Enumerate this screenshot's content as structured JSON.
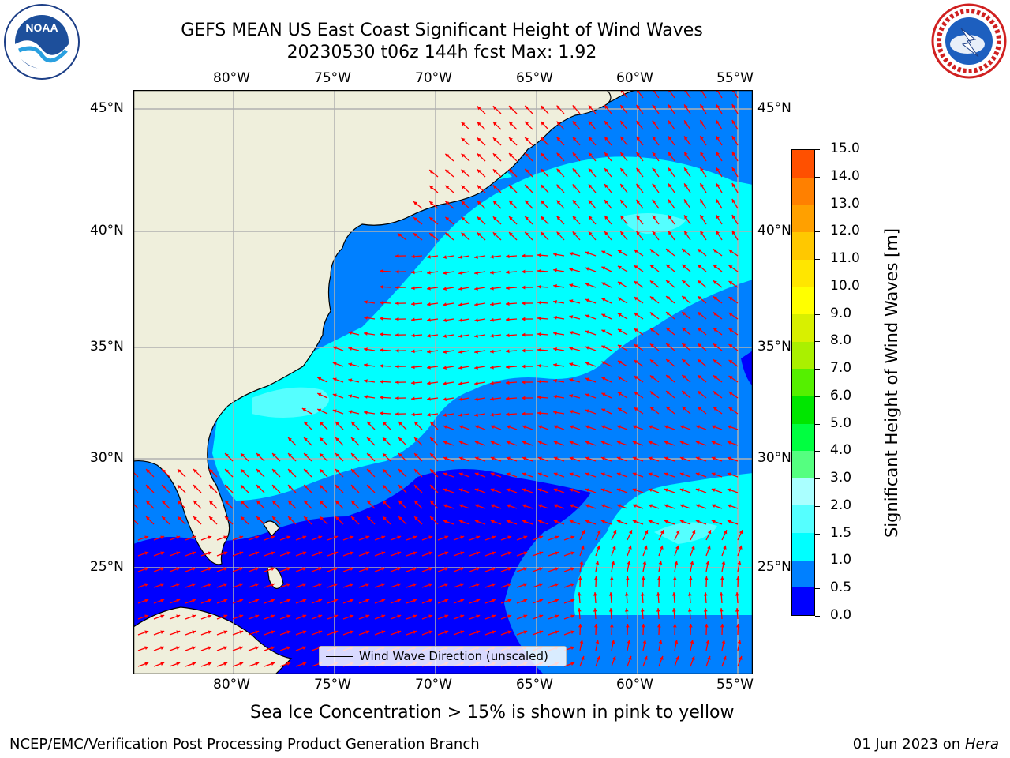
{
  "header": {
    "title_line1": "GEFS MEAN US East Coast Significant Height of Wind Waves",
    "title_line2": "20230530 t06z 144h fcst   Max: 1.92"
  },
  "logos": {
    "left": {
      "name": "NOAA",
      "text": "NOAA",
      "ring_text": "NATIONAL OCEANIC AND ATMOSPHERIC ADMINISTRATION · U.S. DEPARTMENT OF COMMERCE"
    },
    "right": {
      "name": "National Weather Service",
      "ring_text": "NATIONAL WEATHER SERVICE"
    }
  },
  "map": {
    "lon_ticks": [
      "80°W",
      "75°W",
      "70°W",
      "65°W",
      "60°W",
      "55°W"
    ],
    "lat_ticks": [
      "45°N",
      "40°N",
      "35°N",
      "30°N",
      "25°N"
    ],
    "extent": {
      "lon": [
        -85,
        -54.3
      ],
      "lat": [
        20.5,
        45.8
      ]
    },
    "colors": {
      "land": "#efefdc",
      "grid": "#b0b0b0",
      "arrow": "#ff0000",
      "coast": "#000000"
    }
  },
  "colorbar": {
    "label": "Significant Height of Wind Waves [m]",
    "ticks": [
      "15.0",
      "14.0",
      "13.0",
      "12.0",
      "11.0",
      "10.0",
      "9.0",
      "8.0",
      "7.0",
      "6.0",
      "5.0",
      "4.0",
      "3.0",
      "2.0",
      "1.5",
      "1.0",
      "0.5",
      "0.0"
    ],
    "colors": [
      "#0000ff",
      "#0080ff",
      "#00ffff",
      "#55ffff",
      "#aaffff",
      "#55ff80",
      "#00ff40",
      "#00e600",
      "#55f000",
      "#aaf000",
      "#d8f000",
      "#ffff00",
      "#ffe600",
      "#ffc800",
      "#ffa000",
      "#ff8000",
      "#ff5000",
      "#ff2400",
      "#ff0000"
    ]
  },
  "legend": {
    "label": "Wind Wave Direction (unscaled)"
  },
  "notes": {
    "sea_ice": "Sea Ice Concentration > 15% is shown in pink to yellow",
    "credit": "NCEP/EMC/Verification Post Processing Product Generation Branch",
    "run_date": "01 Jun 2023 on",
    "machine": "Hera"
  }
}
